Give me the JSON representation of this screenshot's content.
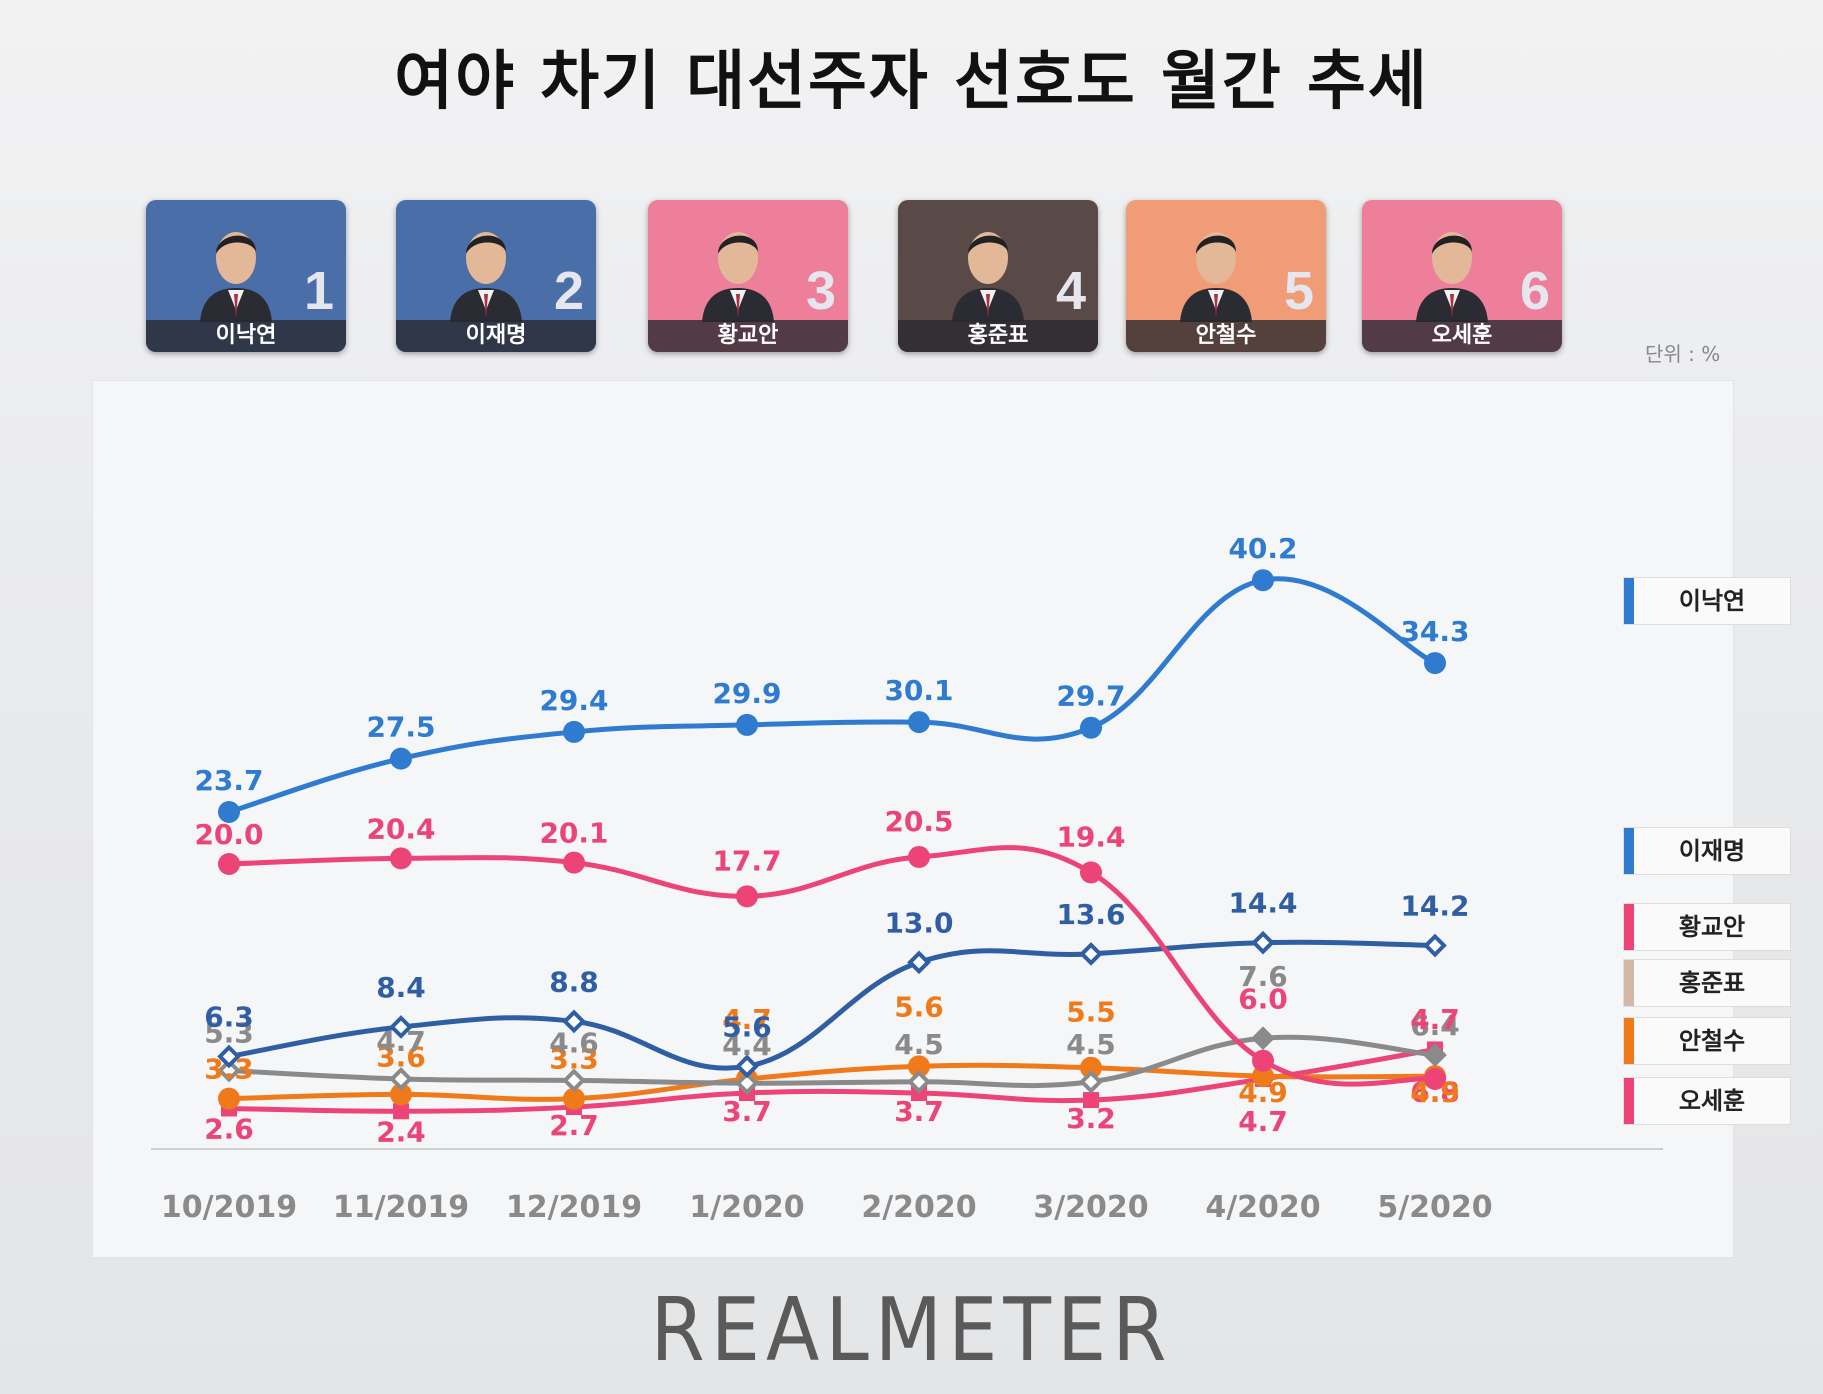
{
  "title": "여야 차기 대선주자 선호도 월간 추세",
  "unit_label": "단위 : %",
  "brand": "REALMETER",
  "candidates": [
    {
      "rank": "1",
      "name": "이낙연",
      "bg": "#4a6ea8"
    },
    {
      "rank": "2",
      "name": "이재명",
      "bg": "#4a6ea8"
    },
    {
      "rank": "3",
      "name": "황교안",
      "bg": "#ee7f9b"
    },
    {
      "rank": "4",
      "name": "홍준표",
      "bg": "#5a4a47"
    },
    {
      "rank": "5",
      "name": "안철수",
      "bg": "#ef9c77"
    },
    {
      "rank": "6",
      "name": "오세훈",
      "bg": "#ee7f9b"
    }
  ],
  "chart_data": {
    "type": "line",
    "categories": [
      "10/2019",
      "11/2019",
      "12/2019",
      "1/2020",
      "2/2020",
      "3/2020",
      "4/2020",
      "5/2020"
    ],
    "series": [
      {
        "name": "이낙연",
        "color": "#2f7bcf",
        "marker": "circle",
        "values": [
          23.7,
          27.5,
          29.4,
          29.9,
          30.1,
          29.7,
          40.2,
          34.3
        ]
      },
      {
        "name": "이재명",
        "color": "#2f5ea3",
        "marker": "diamond",
        "values": [
          6.3,
          8.4,
          8.8,
          5.6,
          13.0,
          13.6,
          14.4,
          14.2
        ]
      },
      {
        "name": "황교안",
        "color": "#ec4477",
        "marker": "circle",
        "values": [
          20.0,
          20.4,
          20.1,
          17.7,
          20.5,
          19.4,
          6.0,
          4.7
        ]
      },
      {
        "name": "홍준표",
        "color": "#8a8a8a",
        "marker": "diamond",
        "values": [
          5.3,
          4.7,
          4.6,
          4.4,
          4.5,
          4.5,
          7.6,
          6.4
        ]
      },
      {
        "name": "안철수",
        "color": "#f07a1a",
        "marker": "circle",
        "values": [
          3.3,
          3.6,
          3.3,
          4.7,
          5.6,
          5.5,
          4.9,
          4.9
        ]
      },
      {
        "name": "오세훈",
        "color": "#ec4477",
        "marker": "square",
        "values": [
          2.6,
          2.4,
          2.7,
          3.7,
          3.7,
          3.2,
          4.7,
          6.8
        ]
      }
    ],
    "legend": [
      {
        "name": "이낙연",
        "color": "#2f7bcf"
      },
      {
        "name": "이재명",
        "color": "#2f7bcf"
      },
      {
        "name": "황교안",
        "color": "#ec4477"
      },
      {
        "name": "홍준표",
        "color": "#d4b8a6"
      },
      {
        "name": "안철수",
        "color": "#f07a1a"
      },
      {
        "name": "오세훈",
        "color": "#ec4477"
      }
    ],
    "legend_position": "right",
    "ylim": [
      0,
      42
    ],
    "grid": false,
    "xlabel": "",
    "ylabel": ""
  }
}
